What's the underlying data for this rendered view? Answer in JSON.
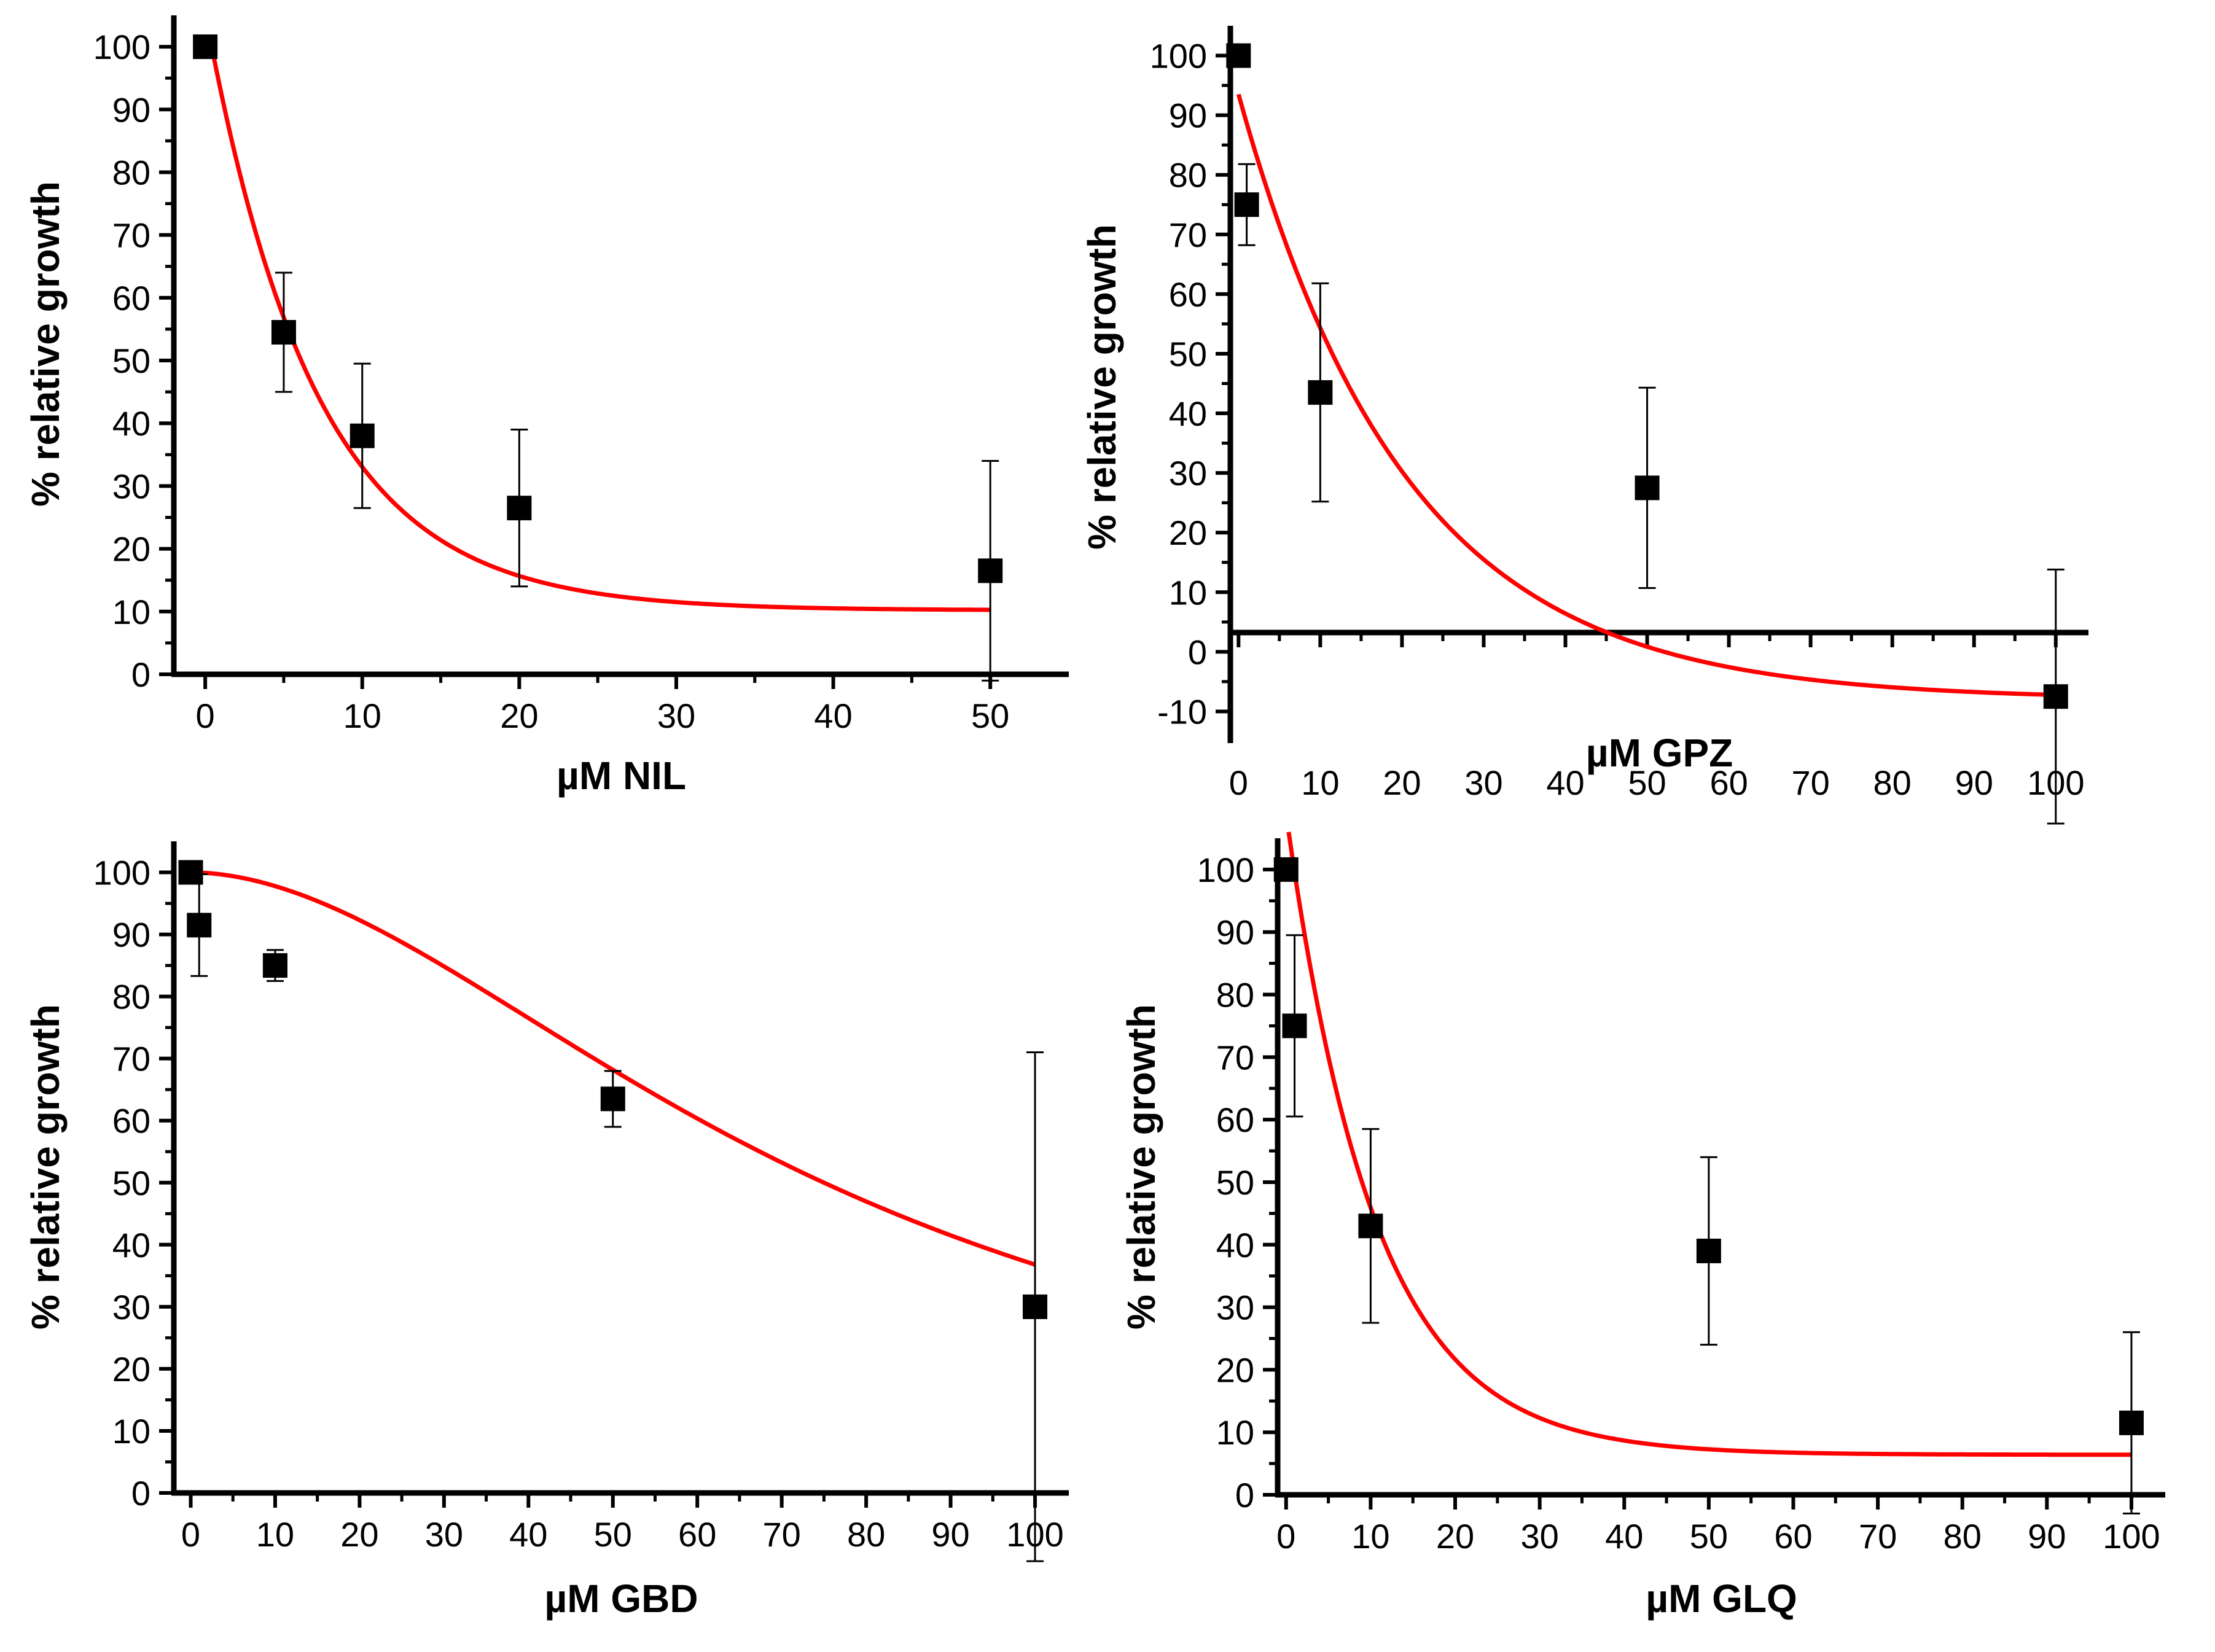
{
  "figure": {
    "background": "#ffffff",
    "fit_color": "#ff0000",
    "marker_color": "#000000"
  },
  "chart_data": [
    {
      "type": "scatter",
      "id": "nil",
      "xlabel": "µM NIL",
      "ylabel": "% relative growth",
      "xlim": [
        -2,
        55
      ],
      "ylim": [
        0,
        105
      ],
      "xticks": [
        0,
        10,
        20,
        30,
        40,
        50
      ],
      "xminor": [
        5,
        15,
        25,
        35,
        45
      ],
      "yticks": [
        0,
        10,
        20,
        30,
        40,
        50,
        60,
        70,
        80,
        90,
        100
      ],
      "points": [
        {
          "x": 0,
          "y": 100,
          "err": 0
        },
        {
          "x": 5,
          "y": 54.5,
          "err": 9.5
        },
        {
          "x": 10,
          "y": 38,
          "err": 11.5
        },
        {
          "x": 20,
          "y": 26.5,
          "err": 12.5
        },
        {
          "x": 50,
          "y": 16.5,
          "err": 17.5
        }
      ],
      "fit": {
        "model": "exponential_decay",
        "y0": 10.2,
        "A": 95.3,
        "t": 7.0,
        "x_start": 0.5,
        "x_end": 50
      }
    },
    {
      "type": "scatter",
      "id": "gpz",
      "xlabel": "µM GPZ",
      "ylabel": "% relative growth",
      "xlim": [
        -1,
        104
      ],
      "ylim": [
        -15,
        105
      ],
      "xticks": [
        0,
        10,
        20,
        30,
        40,
        50,
        60,
        70,
        80,
        90,
        100
      ],
      "xminor": [
        5,
        15,
        25,
        35,
        45,
        55,
        65,
        75,
        85,
        95
      ],
      "yticks": [
        -10,
        0,
        10,
        20,
        30,
        40,
        50,
        60,
        70,
        80,
        90,
        100
      ],
      "points": [
        {
          "x": 0,
          "y": 100,
          "err": 0
        },
        {
          "x": 1,
          "y": 75,
          "err": 6.8
        },
        {
          "x": 10,
          "y": 43.5,
          "err": 18.3
        },
        {
          "x": 50,
          "y": 27.5,
          "err": 16.8
        },
        {
          "x": 100,
          "y": -7.5,
          "err": 21.3
        }
      ],
      "fit": {
        "model": "exponential_decay",
        "y0": -8,
        "A": 101.5,
        "t": 20.5,
        "x_start": 0,
        "x_end": 100
      }
    },
    {
      "type": "scatter",
      "id": "gbd",
      "xlabel": "µM GBD",
      "ylabel": "% relative growth",
      "xlim": [
        -2,
        104
      ],
      "ylim": [
        0,
        105
      ],
      "xticks": [
        0,
        10,
        20,
        30,
        40,
        50,
        60,
        70,
        80,
        90,
        100
      ],
      "xminor": [
        5,
        15,
        25,
        35,
        45,
        55,
        65,
        75,
        85,
        95
      ],
      "yticks": [
        0,
        10,
        20,
        30,
        40,
        50,
        60,
        70,
        80,
        90,
        100
      ],
      "points": [
        {
          "x": 0,
          "y": 100,
          "err": 0
        },
        {
          "x": 1,
          "y": 91.5,
          "err": 8.2
        },
        {
          "x": 10,
          "y": 85,
          "err": 2.5
        },
        {
          "x": 50,
          "y": 63.5,
          "err": 4.5
        },
        {
          "x": 100,
          "y": 30,
          "err": 41
        }
      ],
      "fit": {
        "model": "logistic",
        "A1": 100,
        "A2": 0,
        "x0": 75,
        "p": 1.88,
        "x_start": 0,
        "x_end": 100
      }
    },
    {
      "type": "scatter",
      "id": "glq",
      "xlabel": "µM GLQ",
      "ylabel": "% relative growth",
      "xlim": [
        -1,
        104
      ],
      "ylim": [
        0,
        105
      ],
      "xticks": [
        0,
        10,
        20,
        30,
        40,
        50,
        60,
        70,
        80,
        90,
        100
      ],
      "xminor": [
        5,
        15,
        25,
        35,
        45,
        55,
        65,
        75,
        85,
        95
      ],
      "yticks": [
        0,
        10,
        20,
        30,
        40,
        50,
        60,
        70,
        80,
        90,
        100
      ],
      "points": [
        {
          "x": 0,
          "y": 100,
          "err": 0
        },
        {
          "x": 1,
          "y": 75,
          "err": 14.5
        },
        {
          "x": 10,
          "y": 43,
          "err": 15.5
        },
        {
          "x": 50,
          "y": 39,
          "err": 15
        },
        {
          "x": 100,
          "y": 11.5,
          "err": 14.5
        }
      ],
      "fit": {
        "model": "exponential_decay",
        "y0": 6.4,
        "A": 102.5,
        "t": 10.5,
        "x_start": 0.3,
        "x_end": 100
      }
    }
  ]
}
